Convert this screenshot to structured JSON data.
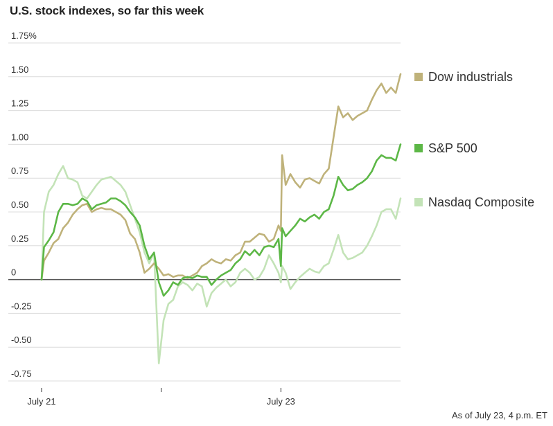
{
  "title": "U.S. stock indexes, so far this week",
  "source_note": "As of July 23, 4 p.m. ET",
  "chart_data": {
    "type": "line",
    "title": "U.S. stock indexes, so far this week",
    "ylim": [
      -0.75,
      1.75
    ],
    "yticks": [
      {
        "value": 1.75,
        "label": "1.75%"
      },
      {
        "value": 1.5,
        "label": "1.50"
      },
      {
        "value": 1.25,
        "label": "1.25"
      },
      {
        "value": 1.0,
        "label": "1.00"
      },
      {
        "value": 0.75,
        "label": "0.75"
      },
      {
        "value": 0.5,
        "label": "0.50"
      },
      {
        "value": 0.25,
        "label": "0.25"
      },
      {
        "value": 0,
        "label": "0"
      },
      {
        "value": -0.25,
        "label": "-0.25"
      },
      {
        "value": -0.5,
        "label": "-0.50"
      },
      {
        "value": -0.75,
        "label": "-0.75"
      }
    ],
    "xlim": [
      0,
      3.0
    ],
    "xticks": [
      {
        "value": 0,
        "label": "July 21"
      },
      {
        "value": 1,
        "label": ""
      },
      {
        "value": 2,
        "label": "July 23"
      }
    ],
    "grid": true,
    "legend_position": "right",
    "series": [
      {
        "name": "Dow industrials",
        "color": "#bfb27a",
        "points": [
          [
            0,
            0
          ],
          [
            0.02,
            0.14
          ],
          [
            0.06,
            0.2
          ],
          [
            0.1,
            0.27
          ],
          [
            0.14,
            0.3
          ],
          [
            0.18,
            0.38
          ],
          [
            0.22,
            0.42
          ],
          [
            0.26,
            0.48
          ],
          [
            0.3,
            0.52
          ],
          [
            0.34,
            0.55
          ],
          [
            0.38,
            0.56
          ],
          [
            0.42,
            0.5
          ],
          [
            0.46,
            0.52
          ],
          [
            0.5,
            0.53
          ],
          [
            0.54,
            0.52
          ],
          [
            0.58,
            0.52
          ],
          [
            0.62,
            0.5
          ],
          [
            0.66,
            0.48
          ],
          [
            0.7,
            0.44
          ],
          [
            0.74,
            0.34
          ],
          [
            0.78,
            0.3
          ],
          [
            0.82,
            0.2
          ],
          [
            0.86,
            0.05
          ],
          [
            0.9,
            0.08
          ],
          [
            0.94,
            0.12
          ],
          [
            0.98,
            0.08
          ],
          [
            1.02,
            0.03
          ],
          [
            1.06,
            0.04
          ],
          [
            1.1,
            0.02
          ],
          [
            1.14,
            0.03
          ],
          [
            1.18,
            0.03
          ],
          [
            1.22,
            0.01
          ],
          [
            1.26,
            0.03
          ],
          [
            1.3,
            0.05
          ],
          [
            1.34,
            0.1
          ],
          [
            1.38,
            0.12
          ],
          [
            1.42,
            0.15
          ],
          [
            1.46,
            0.13
          ],
          [
            1.5,
            0.12
          ],
          [
            1.54,
            0.15
          ],
          [
            1.58,
            0.14
          ],
          [
            1.62,
            0.18
          ],
          [
            1.66,
            0.2
          ],
          [
            1.7,
            0.28
          ],
          [
            1.74,
            0.28
          ],
          [
            1.78,
            0.31
          ],
          [
            1.82,
            0.34
          ],
          [
            1.86,
            0.33
          ],
          [
            1.9,
            0.28
          ],
          [
            1.94,
            0.3
          ],
          [
            1.98,
            0.4
          ],
          [
            2.0,
            0.36
          ],
          [
            2.01,
            0.92
          ],
          [
            2.04,
            0.7
          ],
          [
            2.08,
            0.78
          ],
          [
            2.12,
            0.72
          ],
          [
            2.16,
            0.68
          ],
          [
            2.2,
            0.74
          ],
          [
            2.24,
            0.75
          ],
          [
            2.28,
            0.73
          ],
          [
            2.32,
            0.71
          ],
          [
            2.36,
            0.78
          ],
          [
            2.4,
            0.82
          ],
          [
            2.44,
            1.05
          ],
          [
            2.48,
            1.28
          ],
          [
            2.52,
            1.2
          ],
          [
            2.56,
            1.23
          ],
          [
            2.6,
            1.18
          ],
          [
            2.64,
            1.21
          ],
          [
            2.68,
            1.23
          ],
          [
            2.72,
            1.25
          ],
          [
            2.76,
            1.33
          ],
          [
            2.8,
            1.4
          ],
          [
            2.84,
            1.45
          ],
          [
            2.88,
            1.38
          ],
          [
            2.92,
            1.42
          ],
          [
            2.96,
            1.38
          ],
          [
            3.0,
            1.52
          ]
        ]
      },
      {
        "name": "S&P 500",
        "color": "#5cb746",
        "points": [
          [
            0,
            0
          ],
          [
            0.02,
            0.24
          ],
          [
            0.06,
            0.29
          ],
          [
            0.1,
            0.35
          ],
          [
            0.14,
            0.5
          ],
          [
            0.18,
            0.56
          ],
          [
            0.22,
            0.56
          ],
          [
            0.26,
            0.55
          ],
          [
            0.3,
            0.56
          ],
          [
            0.34,
            0.6
          ],
          [
            0.38,
            0.58
          ],
          [
            0.42,
            0.52
          ],
          [
            0.46,
            0.55
          ],
          [
            0.5,
            0.56
          ],
          [
            0.54,
            0.57
          ],
          [
            0.58,
            0.6
          ],
          [
            0.62,
            0.6
          ],
          [
            0.66,
            0.58
          ],
          [
            0.7,
            0.55
          ],
          [
            0.74,
            0.5
          ],
          [
            0.78,
            0.46
          ],
          [
            0.82,
            0.4
          ],
          [
            0.86,
            0.25
          ],
          [
            0.9,
            0.15
          ],
          [
            0.94,
            0.2
          ],
          [
            0.98,
            -0.02
          ],
          [
            1.02,
            -0.12
          ],
          [
            1.06,
            -0.08
          ],
          [
            1.1,
            -0.02
          ],
          [
            1.14,
            -0.04
          ],
          [
            1.18,
            0.01
          ],
          [
            1.22,
            0.02
          ],
          [
            1.26,
            0.01
          ],
          [
            1.3,
            0.03
          ],
          [
            1.34,
            0.02
          ],
          [
            1.38,
            0.02
          ],
          [
            1.42,
            -0.04
          ],
          [
            1.46,
            0.0
          ],
          [
            1.5,
            0.03
          ],
          [
            1.54,
            0.05
          ],
          [
            1.58,
            0.07
          ],
          [
            1.62,
            0.12
          ],
          [
            1.66,
            0.15
          ],
          [
            1.7,
            0.21
          ],
          [
            1.74,
            0.18
          ],
          [
            1.78,
            0.22
          ],
          [
            1.82,
            0.18
          ],
          [
            1.86,
            0.24
          ],
          [
            1.9,
            0.25
          ],
          [
            1.94,
            0.24
          ],
          [
            1.98,
            0.3
          ],
          [
            2.0,
            0.1
          ],
          [
            2.01,
            0.38
          ],
          [
            2.04,
            0.32
          ],
          [
            2.08,
            0.36
          ],
          [
            2.12,
            0.4
          ],
          [
            2.16,
            0.45
          ],
          [
            2.2,
            0.43
          ],
          [
            2.24,
            0.46
          ],
          [
            2.28,
            0.48
          ],
          [
            2.32,
            0.45
          ],
          [
            2.36,
            0.5
          ],
          [
            2.4,
            0.52
          ],
          [
            2.44,
            0.62
          ],
          [
            2.48,
            0.76
          ],
          [
            2.52,
            0.7
          ],
          [
            2.56,
            0.66
          ],
          [
            2.6,
            0.67
          ],
          [
            2.64,
            0.7
          ],
          [
            2.68,
            0.72
          ],
          [
            2.72,
            0.75
          ],
          [
            2.76,
            0.8
          ],
          [
            2.8,
            0.88
          ],
          [
            2.84,
            0.92
          ],
          [
            2.88,
            0.9
          ],
          [
            2.92,
            0.9
          ],
          [
            2.96,
            0.88
          ],
          [
            3.0,
            1.0
          ]
        ]
      },
      {
        "name": "Nasdaq Composite",
        "color": "#c3e3b7",
        "points": [
          [
            0,
            0
          ],
          [
            0.02,
            0.5
          ],
          [
            0.06,
            0.65
          ],
          [
            0.1,
            0.7
          ],
          [
            0.14,
            0.78
          ],
          [
            0.18,
            0.84
          ],
          [
            0.22,
            0.75
          ],
          [
            0.26,
            0.74
          ],
          [
            0.3,
            0.72
          ],
          [
            0.34,
            0.62
          ],
          [
            0.38,
            0.6
          ],
          [
            0.42,
            0.65
          ],
          [
            0.46,
            0.7
          ],
          [
            0.5,
            0.74
          ],
          [
            0.54,
            0.75
          ],
          [
            0.58,
            0.76
          ],
          [
            0.62,
            0.73
          ],
          [
            0.66,
            0.7
          ],
          [
            0.7,
            0.65
          ],
          [
            0.74,
            0.55
          ],
          [
            0.78,
            0.45
          ],
          [
            0.82,
            0.35
          ],
          [
            0.86,
            0.2
          ],
          [
            0.9,
            0.12
          ],
          [
            0.94,
            0.2
          ],
          [
            0.98,
            -0.62
          ],
          [
            1.02,
            -0.3
          ],
          [
            1.06,
            -0.18
          ],
          [
            1.1,
            -0.15
          ],
          [
            1.14,
            -0.05
          ],
          [
            1.18,
            -0.02
          ],
          [
            1.22,
            -0.04
          ],
          [
            1.26,
            -0.08
          ],
          [
            1.3,
            -0.03
          ],
          [
            1.34,
            -0.05
          ],
          [
            1.38,
            -0.2
          ],
          [
            1.42,
            -0.1
          ],
          [
            1.46,
            -0.06
          ],
          [
            1.5,
            -0.03
          ],
          [
            1.54,
            0.0
          ],
          [
            1.58,
            -0.05
          ],
          [
            1.62,
            -0.02
          ],
          [
            1.66,
            0.05
          ],
          [
            1.7,
            0.08
          ],
          [
            1.74,
            0.05
          ],
          [
            1.78,
            0.0
          ],
          [
            1.82,
            0.02
          ],
          [
            1.86,
            0.08
          ],
          [
            1.9,
            0.18
          ],
          [
            1.94,
            0.12
          ],
          [
            1.98,
            0.05
          ],
          [
            2.0,
            -0.02
          ],
          [
            2.01,
            0.1
          ],
          [
            2.04,
            0.05
          ],
          [
            2.08,
            -0.07
          ],
          [
            2.12,
            -0.02
          ],
          [
            2.16,
            0.02
          ],
          [
            2.2,
            0.05
          ],
          [
            2.24,
            0.08
          ],
          [
            2.28,
            0.06
          ],
          [
            2.32,
            0.05
          ],
          [
            2.36,
            0.1
          ],
          [
            2.4,
            0.12
          ],
          [
            2.44,
            0.22
          ],
          [
            2.48,
            0.33
          ],
          [
            2.52,
            0.2
          ],
          [
            2.56,
            0.15
          ],
          [
            2.6,
            0.16
          ],
          [
            2.64,
            0.18
          ],
          [
            2.68,
            0.2
          ],
          [
            2.72,
            0.25
          ],
          [
            2.76,
            0.32
          ],
          [
            2.8,
            0.4
          ],
          [
            2.84,
            0.5
          ],
          [
            2.88,
            0.52
          ],
          [
            2.92,
            0.52
          ],
          [
            2.96,
            0.45
          ],
          [
            3.0,
            0.6
          ]
        ]
      }
    ]
  }
}
